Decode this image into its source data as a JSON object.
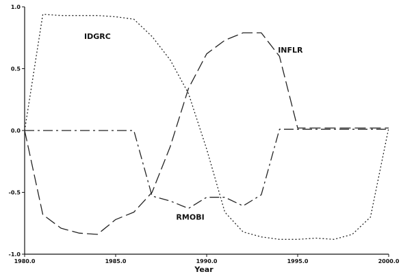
{
  "chart_data": {
    "type": "line",
    "title": "",
    "xlabel": "Year",
    "ylabel": "",
    "xlim": [
      1980,
      2000
    ],
    "ylim": [
      -1,
      1
    ],
    "xticks": [
      1980,
      1985,
      1990,
      1995,
      2000
    ],
    "xtick_labels": [
      "1980.0",
      "1985.0",
      "1990.0",
      "1995.0",
      "2000.0"
    ],
    "yticks": [
      -1,
      -0.5,
      0,
      0.5,
      1
    ],
    "ytick_labels": [
      "-1.0",
      "-0.5",
      "0.0",
      "0.5",
      "1.0"
    ],
    "grid": false,
    "legend": "none",
    "series": [
      {
        "name": "IDGRC",
        "style": "dotted",
        "color": "#222222",
        "x": [
          1980,
          1981,
          1982,
          1983,
          1984,
          1985,
          1986,
          1987,
          1988,
          1989,
          1990,
          1991,
          1992,
          1993,
          1994,
          1995,
          1996,
          1997,
          1998,
          1999,
          2000
        ],
        "y": [
          0.0,
          0.94,
          0.93,
          0.93,
          0.93,
          0.92,
          0.9,
          0.76,
          0.57,
          0.3,
          -0.15,
          -0.66,
          -0.82,
          -0.86,
          -0.88,
          -0.88,
          -0.87,
          -0.88,
          -0.84,
          -0.7,
          0.02
        ]
      },
      {
        "name": "INFLR",
        "style": "long-dash",
        "color": "#222222",
        "x": [
          1980,
          1981,
          1982,
          1983,
          1984,
          1985,
          1986,
          1987,
          1988,
          1989,
          1990,
          1991,
          1992,
          1993,
          1994,
          1995,
          1996,
          1997,
          1998,
          1999,
          2000
        ],
        "y": [
          0.0,
          -0.68,
          -0.79,
          -0.83,
          -0.84,
          -0.72,
          -0.66,
          -0.5,
          -0.13,
          0.34,
          0.62,
          0.73,
          0.79,
          0.79,
          0.6,
          0.02,
          0.02,
          0.02,
          0.02,
          0.02,
          0.02
        ]
      },
      {
        "name": "RMOBI",
        "style": "dash-dot",
        "color": "#222222",
        "x": [
          1980,
          1981,
          1982,
          1983,
          1984,
          1985,
          1986,
          1987,
          1988,
          1989,
          1990,
          1991,
          1992,
          1993,
          1994,
          1995,
          1996,
          1997,
          1998,
          1999,
          2000
        ],
        "y": [
          0.0,
          0.0,
          0.0,
          0.0,
          0.0,
          0.0,
          0.0,
          -0.53,
          -0.57,
          -0.63,
          -0.54,
          -0.54,
          -0.61,
          -0.52,
          0.01,
          0.01,
          0.01,
          0.01,
          0.01,
          0.01,
          0.01
        ]
      }
    ],
    "annotations": [
      {
        "text": "IDGRC",
        "x": 1984.0,
        "y": 0.74
      },
      {
        "text": "INFLR",
        "x": 1994.6,
        "y": 0.63
      },
      {
        "text": "RMOBI",
        "x": 1989.1,
        "y": -0.72
      }
    ]
  }
}
